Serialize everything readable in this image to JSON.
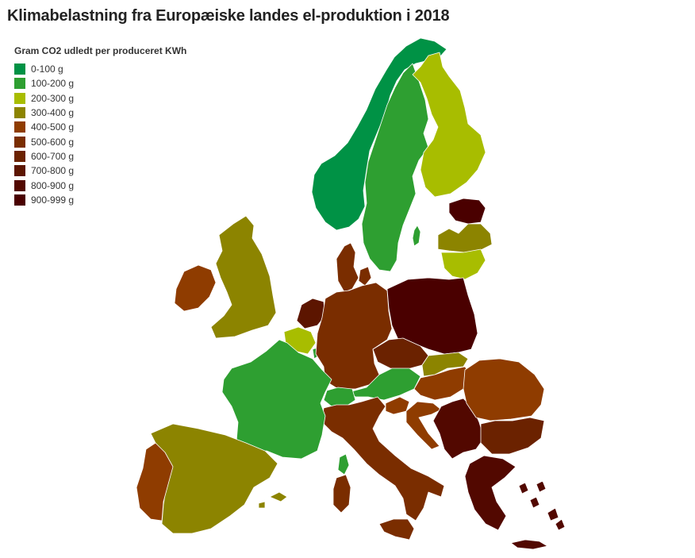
{
  "title": "Klimabelastning fra Europæiske landes el-produktion i 2018",
  "legend": {
    "title": "Gram CO2 udledt per produceret KWh",
    "items": [
      {
        "label": "0-100 g",
        "color": "#009245"
      },
      {
        "label": "100-200 g",
        "color": "#2e9f31"
      },
      {
        "label": "200-300 g",
        "color": "#a8bd00"
      },
      {
        "label": "300-400 g",
        "color": "#8c8400"
      },
      {
        "label": "400-500 g",
        "color": "#8f3c00"
      },
      {
        "label": "500-600 g",
        "color": "#7a2d00"
      },
      {
        "label": "600-700 g",
        "color": "#6b2200"
      },
      {
        "label": "700-800 g",
        "color": "#5c1500"
      },
      {
        "label": "800-900 g",
        "color": "#520800"
      },
      {
        "label": "900-999 g",
        "color": "#4a0000"
      }
    ]
  },
  "countries": [
    {
      "id": "norway",
      "band": 0
    },
    {
      "id": "sweden",
      "band": 1
    },
    {
      "id": "finland",
      "band": 2
    },
    {
      "id": "estonia",
      "band": 9
    },
    {
      "id": "latvia",
      "band": 3
    },
    {
      "id": "lithuania",
      "band": 2
    },
    {
      "id": "denmark",
      "band": 5
    },
    {
      "id": "ireland",
      "band": 4
    },
    {
      "id": "united-kingdom",
      "band": 3
    },
    {
      "id": "netherlands",
      "band": 7
    },
    {
      "id": "belgium",
      "band": 2
    },
    {
      "id": "luxembourg",
      "band": 1
    },
    {
      "id": "germany",
      "band": 5
    },
    {
      "id": "poland",
      "band": 9
    },
    {
      "id": "czechia",
      "band": 6
    },
    {
      "id": "slovakia",
      "band": 3
    },
    {
      "id": "austria",
      "band": 1
    },
    {
      "id": "hungary",
      "band": 4
    },
    {
      "id": "slovenia",
      "band": 4
    },
    {
      "id": "croatia",
      "band": 4
    },
    {
      "id": "bosnia-serbia",
      "band": 8
    },
    {
      "id": "romania",
      "band": 4
    },
    {
      "id": "bulgaria",
      "band": 6
    },
    {
      "id": "greece",
      "band": 8
    },
    {
      "id": "greek-islands",
      "band": 8
    },
    {
      "id": "crete",
      "band": 8
    },
    {
      "id": "switzerland",
      "band": 1
    },
    {
      "id": "italy",
      "band": 5
    },
    {
      "id": "sicily",
      "band": 5
    },
    {
      "id": "sardinia",
      "band": 5
    },
    {
      "id": "corsica",
      "band": 1
    },
    {
      "id": "france",
      "band": 1
    },
    {
      "id": "spain",
      "band": 3
    },
    {
      "id": "balearic-islands",
      "band": 3
    },
    {
      "id": "portugal",
      "band": 4
    },
    {
      "id": "gotland",
      "band": 1
    }
  ]
}
